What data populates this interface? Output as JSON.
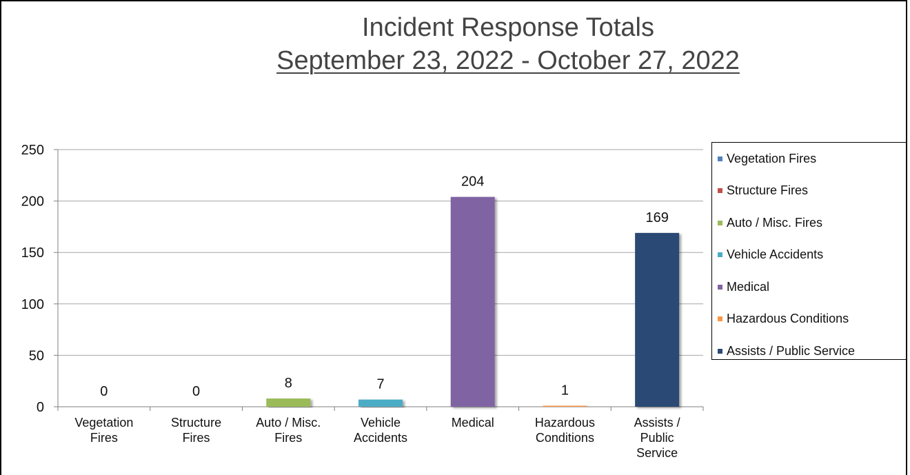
{
  "chart_data": {
    "type": "bar",
    "title": "Incident Response Totals",
    "subtitle": "September 23, 2022 - October 27, 2022",
    "categories": [
      [
        "Vegetation",
        "Fires"
      ],
      [
        "Structure",
        "Fires"
      ],
      [
        "Auto / Misc.",
        "Fires"
      ],
      [
        "Vehicle",
        "Accidents"
      ],
      [
        "Medical"
      ],
      [
        "Hazardous",
        "Conditions"
      ],
      [
        "Assists /",
        "Public",
        "Service"
      ]
    ],
    "values": [
      0,
      0,
      8,
      7,
      204,
      1,
      169
    ],
    "data_labels": [
      "0",
      "0",
      "8",
      "7",
      "204",
      "1",
      "169"
    ],
    "colors": [
      "#4f81bd",
      "#c0504d",
      "#9bbb59",
      "#4bacc6",
      "#8064a2",
      "#f79646",
      "#2c4a74"
    ],
    "ylim": [
      0,
      250
    ],
    "yticks": [
      0,
      50,
      100,
      150,
      200,
      250
    ],
    "grid": true,
    "legend_position": "right",
    "legend": [
      "Vegetation Fires",
      "Structure Fires",
      "Auto / Misc. Fires",
      "Vehicle Accidents",
      "Medical",
      "Hazardous Conditions",
      "Assists / Public Service"
    ]
  }
}
